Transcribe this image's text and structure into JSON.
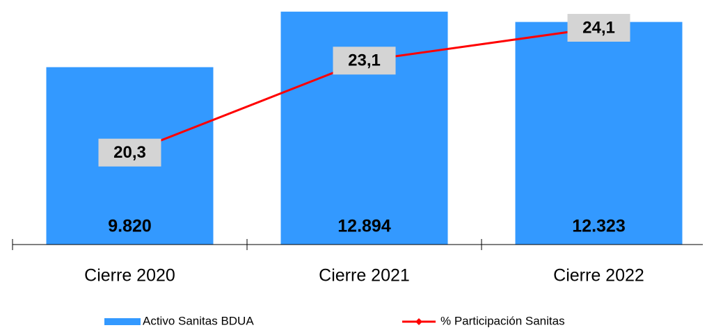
{
  "chart_data": {
    "type": "bar",
    "categories": [
      "Cierre 2020",
      "Cierre 2021",
      "Cierre 2022"
    ],
    "series": [
      {
        "name": "Activo Sanitas BDUA",
        "type": "bar",
        "color": "#3399ff",
        "values": [
          9820,
          12894,
          12323
        ],
        "value_labels": [
          "9.820",
          "12.894",
          "12.323"
        ]
      },
      {
        "name": "% Participación Sanitas",
        "type": "line",
        "axis": "y2",
        "color": "#ff0000",
        "values": [
          20.3,
          23.1,
          24.1
        ],
        "value_labels": [
          "20,3",
          "23,1",
          "24,1"
        ]
      }
    ],
    "ylim": [
      0,
      13000
    ],
    "y2lim": [
      17.5,
      24.65
    ],
    "legend": "bottom"
  }
}
